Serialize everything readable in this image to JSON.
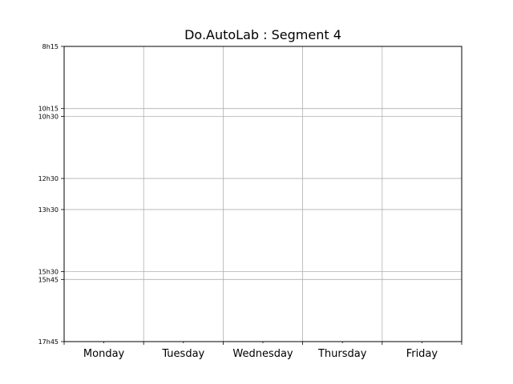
{
  "chart_data": {
    "type": "table",
    "title": "Do.AutoLab : Segment 4",
    "days": [
      "Monday",
      "Tuesday",
      "Wednesday",
      "Thursday",
      "Friday"
    ],
    "time_ticks": [
      {
        "label": "8h15",
        "minutes": 495
      },
      {
        "label": "10h15",
        "minutes": 615
      },
      {
        "label": "10h30",
        "minutes": 630
      },
      {
        "label": "12h30",
        "minutes": 750
      },
      {
        "label": "13h30",
        "minutes": 810
      },
      {
        "label": "15h30",
        "minutes": 930
      },
      {
        "label": "15h45",
        "minutes": 945
      },
      {
        "label": "17h45",
        "minutes": 1065
      }
    ],
    "ylim": [
      495,
      1065
    ],
    "y_inverted": true,
    "grid": true,
    "events": []
  }
}
